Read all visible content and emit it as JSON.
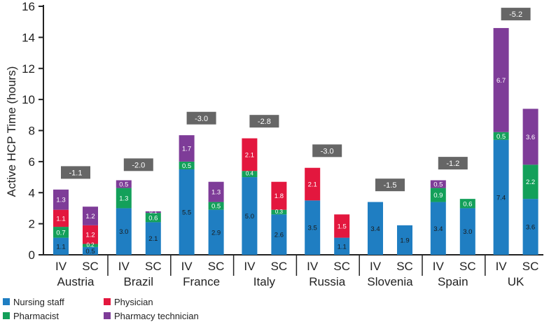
{
  "chart_data": {
    "type": "bar",
    "stacked": true,
    "ylabel": "Active HCP Time (hours)",
    "ylim": [
      0,
      16
    ],
    "yticks": [
      0,
      2,
      4,
      6,
      8,
      10,
      12,
      14,
      16
    ],
    "bar_labels": [
      "IV",
      "SC"
    ],
    "series_order": [
      "Nursing staff",
      "Pharmacist",
      "Physician",
      "Pharmacy technician"
    ],
    "colors": {
      "Nursing staff": "#1f7ec2",
      "Pharmacist": "#13a05a",
      "Physician": "#e3173e",
      "Pharmacy technician": "#7e3c98",
      "diff_box": "#666666"
    },
    "legend": [
      {
        "name": "Nursing staff",
        "color": "#1f7ec2"
      },
      {
        "name": "Physician",
        "color": "#e3173e"
      },
      {
        "name": "Pharmacist",
        "color": "#13a05a"
      },
      {
        "name": "Pharmacy technician",
        "color": "#7e3c98"
      }
    ],
    "countries": [
      {
        "name": "Austria",
        "diff": "-1.1",
        "diff_y": 5.3,
        "IV": {
          "Nursing staff": 1.1,
          "Pharmacist": 0.7,
          "Physician": 1.1,
          "Pharmacy technician": 1.3
        },
        "SC": {
          "Nursing staff": 0.5,
          "Pharmacist": 0.2,
          "Physician": 1.2,
          "Pharmacy technician": 1.2
        }
      },
      {
        "name": "Brazil",
        "diff": "-2.0",
        "diff_y": 5.8,
        "IV": {
          "Nursing staff": 3.0,
          "Pharmacist": 1.3,
          "Physician": 0,
          "Pharmacy technician": 0.5
        },
        "SC": {
          "Nursing staff": 2.1,
          "Pharmacist": 0.6,
          "Physician": 0,
          "Pharmacy technician": 0.1
        }
      },
      {
        "name": "France",
        "diff": "-3.0",
        "diff_y": 8.8,
        "IV": {
          "Nursing staff": 5.5,
          "Pharmacist": 0.5,
          "Physician": 0,
          "Pharmacy technician": 1.7
        },
        "SC": {
          "Nursing staff": 2.9,
          "Pharmacist": 0.5,
          "Physician": 0,
          "Pharmacy technician": 1.3
        }
      },
      {
        "name": "Italy",
        "diff": "-2.8",
        "diff_y": 8.6,
        "IV": {
          "Nursing staff": 5.0,
          "Pharmacist": 0.4,
          "Physician": 2.1,
          "Pharmacy technician": 0
        },
        "SC": {
          "Nursing staff": 2.6,
          "Pharmacist": 0.3,
          "Physician": 1.8,
          "Pharmacy technician": 0
        }
      },
      {
        "name": "Russia",
        "diff": "-3.0",
        "diff_y": 6.7,
        "IV": {
          "Nursing staff": 3.5,
          "Pharmacist": 0,
          "Physician": 2.1,
          "Pharmacy technician": 0
        },
        "SC": {
          "Nursing staff": 1.1,
          "Pharmacist": 0,
          "Physician": 1.5,
          "Pharmacy technician": 0
        }
      },
      {
        "name": "Slovenia",
        "diff": "-1.5",
        "diff_y": 4.5,
        "IV": {
          "Nursing staff": 3.4,
          "Pharmacist": 0,
          "Physician": 0,
          "Pharmacy technician": 0
        },
        "SC": {
          "Nursing staff": 1.9,
          "Pharmacist": 0,
          "Physician": 0,
          "Pharmacy technician": 0
        }
      },
      {
        "name": "Spain",
        "diff": "-1.2",
        "diff_y": 5.9,
        "IV": {
          "Nursing staff": 3.4,
          "Pharmacist": 0.9,
          "Physician": 0,
          "Pharmacy technician": 0.5
        },
        "SC": {
          "Nursing staff": 3.0,
          "Pharmacist": 0.6,
          "Physician": 0,
          "Pharmacy technician": 0
        }
      },
      {
        "name": "UK",
        "diff": "-5.2",
        "diff_y": 15.5,
        "IV": {
          "Nursing staff": 7.4,
          "Pharmacist": 0.5,
          "Physician": 0,
          "Pharmacy technician": 6.7
        },
        "SC": {
          "Nursing staff": 3.6,
          "Pharmacist": 2.2,
          "Physician": 0,
          "Pharmacy technician": 3.6
        }
      }
    ]
  }
}
